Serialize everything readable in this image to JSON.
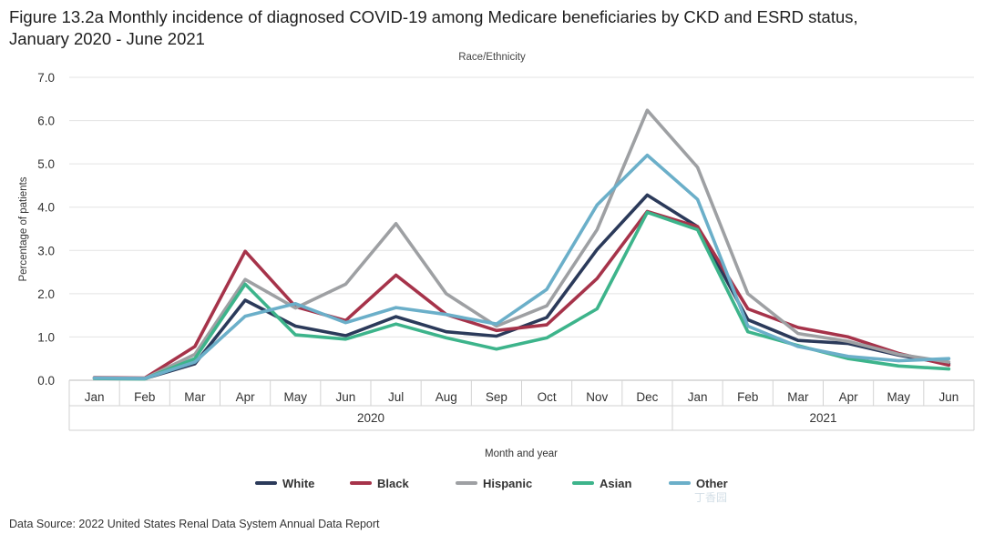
{
  "header": {
    "title": "Figure 13.2a Monthly incidence of diagnosed COVID-19 among Medicare beneficiaries by CKD and ESRD status, January 2020 - June 2021",
    "subtitle": "Race/Ethnicity"
  },
  "footer": {
    "source": "Data Source: 2022 United States Renal Data System Annual Data Report",
    "watermark": "丁香园"
  },
  "chart_data": {
    "type": "line",
    "title": "Figure 13.2a Monthly incidence of diagnosed COVID-19 among Medicare beneficiaries by CKD and ESRD status, January 2020 - June 2021",
    "subtitle": "Race/Ethnicity",
    "xlabel": "Month and year",
    "ylabel": "Percentage of patients",
    "ylim": [
      0,
      7
    ],
    "yticks": [
      "0.0",
      "1.0",
      "2.0",
      "3.0",
      "4.0",
      "5.0",
      "6.0",
      "7.0"
    ],
    "categories": [
      "Jan",
      "Feb",
      "Mar",
      "Apr",
      "May",
      "Jun",
      "Jul",
      "Aug",
      "Sep",
      "Oct",
      "Nov",
      "Dec",
      "Jan",
      "Feb",
      "Mar",
      "Apr",
      "May",
      "Jun"
    ],
    "year_groups": [
      {
        "label": "2020",
        "count": 12
      },
      {
        "label": "2021",
        "count": 6
      }
    ],
    "grid": true,
    "legend_position": "bottom",
    "series": [
      {
        "name": "White",
        "color": "#2b3a5a",
        "values": [
          0.05,
          0.04,
          0.38,
          1.85,
          1.25,
          1.03,
          1.47,
          1.12,
          1.02,
          1.45,
          3.02,
          4.28,
          3.55,
          1.4,
          0.92,
          0.85,
          0.58,
          0.38
        ]
      },
      {
        "name": "Black",
        "color": "#a6334a",
        "values": [
          0.06,
          0.05,
          0.78,
          2.98,
          1.7,
          1.38,
          2.43,
          1.52,
          1.15,
          1.28,
          2.35,
          3.9,
          3.55,
          1.65,
          1.22,
          1.0,
          0.62,
          0.35
        ]
      },
      {
        "name": "Hispanic",
        "color": "#9ea0a3",
        "values": [
          0.05,
          0.04,
          0.6,
          2.33,
          1.67,
          2.22,
          3.62,
          2.0,
          1.25,
          1.72,
          3.48,
          6.24,
          4.92,
          2.0,
          1.08,
          0.9,
          0.6,
          0.42
        ]
      },
      {
        "name": "Asian",
        "color": "#3db48b",
        "values": [
          0.04,
          0.03,
          0.5,
          2.22,
          1.05,
          0.95,
          1.3,
          0.98,
          0.72,
          0.98,
          1.65,
          3.88,
          3.48,
          1.12,
          0.8,
          0.5,
          0.33,
          0.26
        ]
      },
      {
        "name": "Other",
        "color": "#6bafc9",
        "values": [
          0.05,
          0.04,
          0.42,
          1.48,
          1.77,
          1.33,
          1.68,
          1.52,
          1.3,
          2.1,
          4.05,
          5.2,
          4.18,
          1.25,
          0.78,
          0.55,
          0.45,
          0.5
        ]
      }
    ]
  }
}
